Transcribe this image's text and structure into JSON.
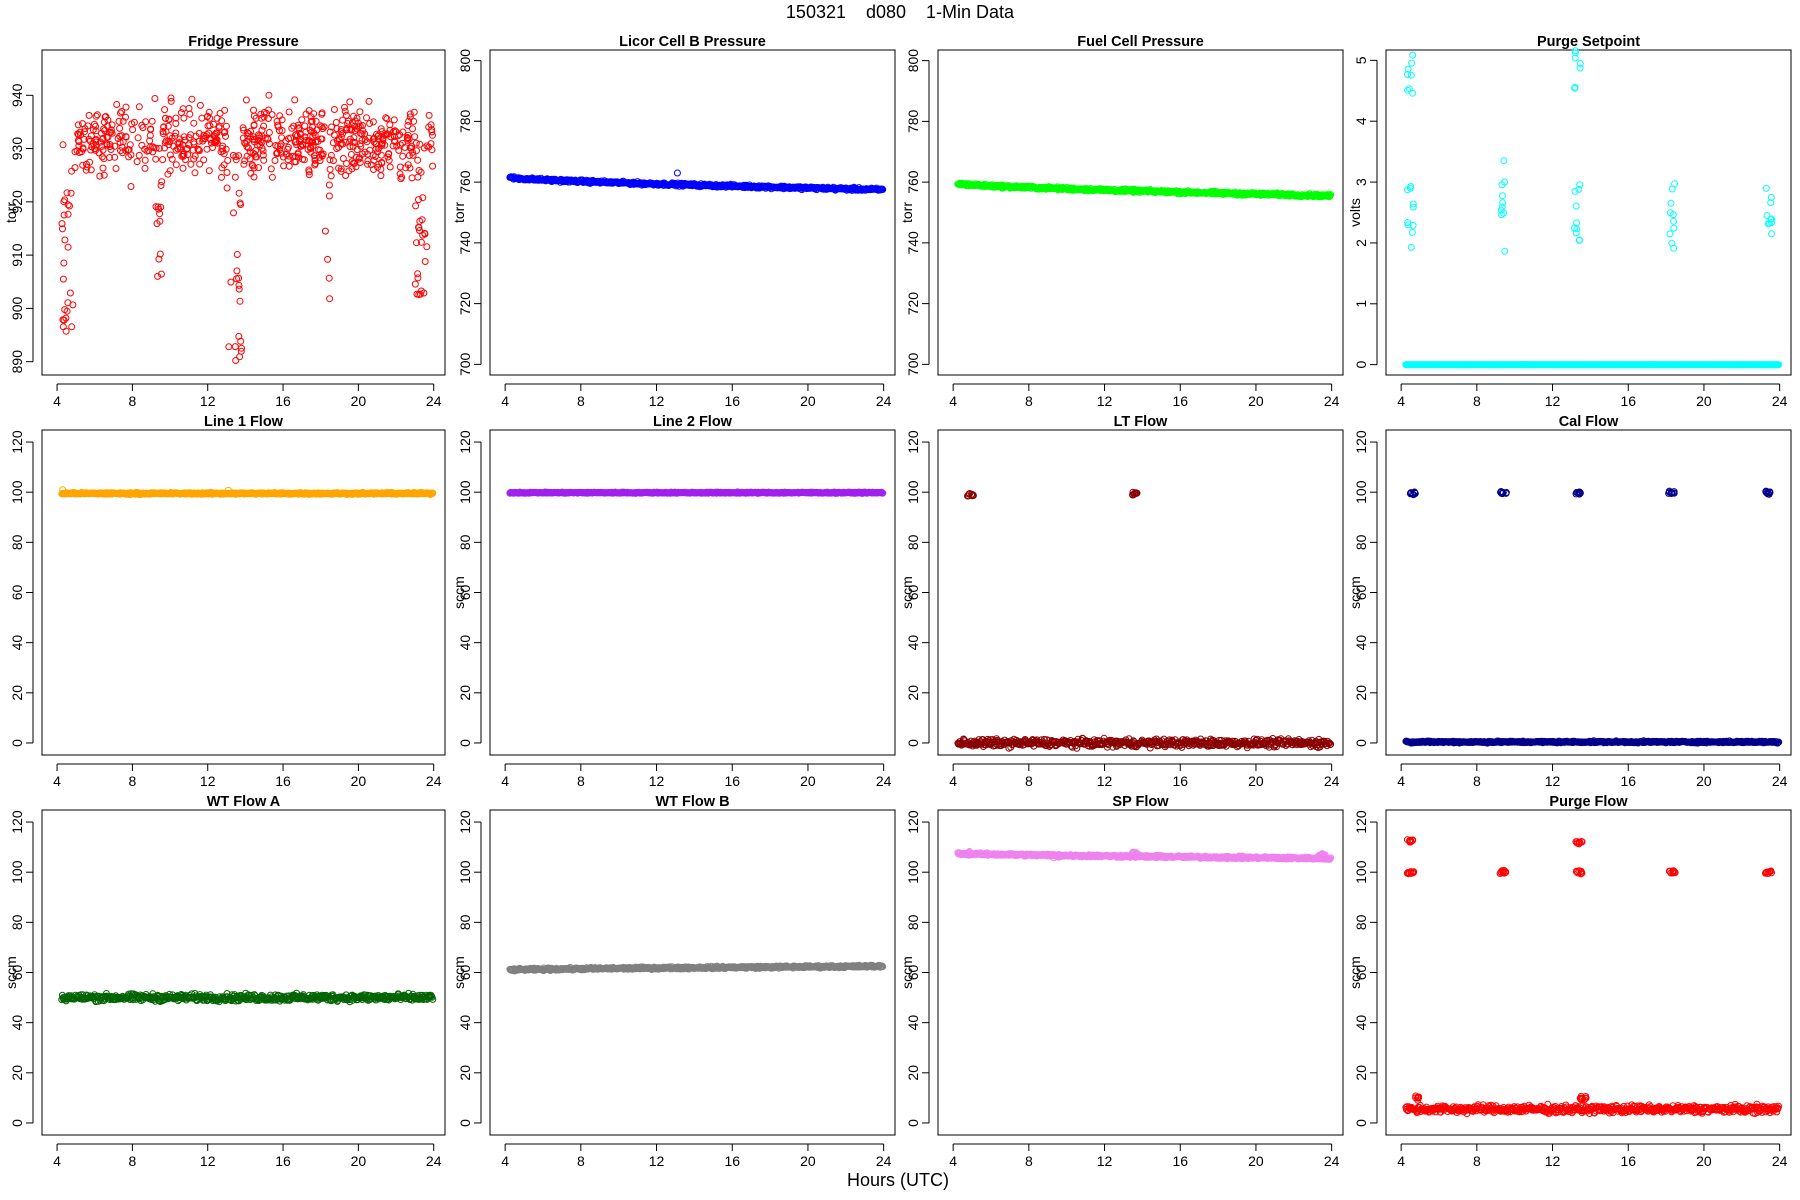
{
  "page": {
    "suptitle": "150321    d080    1-Min Data",
    "xlabel": "Hours (UTC)"
  },
  "chart_data": [
    {
      "type": "scatter",
      "title": "Fridge Pressure",
      "ylabel": "torr",
      "color": "#ff0000",
      "xlim": [
        3.2,
        24.6
      ],
      "ylim": [
        887.5,
        948.5
      ],
      "xticks": [
        4,
        8,
        12,
        16,
        20,
        24
      ],
      "yticks": [
        890,
        900,
        910,
        920,
        930,
        940
      ],
      "pattern": {
        "kind": "noisy",
        "base": 931.5,
        "noise": 5.5,
        "dips": [
          {
            "x_start": 4.2,
            "x_end": 4.9,
            "y_min": 895
          },
          {
            "x_start": 9.2,
            "x_end": 9.6,
            "y_min": 906
          },
          {
            "x_start": 13.0,
            "x_end": 13.8,
            "y_min": 890
          },
          {
            "x_start": 18.2,
            "x_end": 18.5,
            "y_min": 900
          },
          {
            "x_start": 23.0,
            "x_end": 23.7,
            "y_min": 900
          }
        ]
      }
    },
    {
      "type": "scatter",
      "title": "Licor Cell B Pressure",
      "ylabel": "torr",
      "color": "#0000ff",
      "xlim": [
        3.2,
        24.6
      ],
      "ylim": [
        696.5,
        803.5
      ],
      "xticks": [
        4,
        8,
        12,
        16,
        20,
        24
      ],
      "yticks": [
        700,
        720,
        740,
        760,
        780,
        800
      ],
      "pattern": {
        "kind": "trend",
        "y_start": 761.5,
        "y_end": 757.5,
        "noise": 0.4,
        "outliers": [
          [
            13.1,
            763
          ]
        ]
      }
    },
    {
      "type": "scatter",
      "title": "Fuel Cell Pressure",
      "ylabel": "torr",
      "color": "#00ff00",
      "xlim": [
        3.2,
        24.6
      ],
      "ylim": [
        696.5,
        803.5
      ],
      "xticks": [
        4,
        8,
        12,
        16,
        20,
        24
      ],
      "yticks": [
        700,
        720,
        740,
        760,
        780,
        800
      ],
      "pattern": {
        "kind": "trend",
        "y_start": 759.5,
        "y_end": 755.5,
        "noise": 0.4
      }
    },
    {
      "type": "scatter",
      "title": "Purge Setpoint",
      "ylabel": "volts",
      "color": "#00ffff",
      "xlim": [
        3.2,
        24.6
      ],
      "ylim": [
        -0.17,
        5.17
      ],
      "xticks": [
        4,
        8,
        12,
        16,
        20,
        24
      ],
      "yticks": [
        0,
        1,
        2,
        3,
        4,
        5
      ],
      "pattern": {
        "kind": "baseline",
        "y": 0,
        "noise": 0,
        "clusters": [
          {
            "x": 4.5,
            "y": 5.0
          },
          {
            "x": 4.5,
            "y": 2.5
          },
          {
            "x": 9.4,
            "y": 2.5
          },
          {
            "x": 13.3,
            "y": 5.0
          },
          {
            "x": 13.3,
            "y": 2.55
          },
          {
            "x": 18.3,
            "y": 2.5
          },
          {
            "x": 23.4,
            "y": 2.5
          }
        ]
      }
    },
    {
      "type": "scatter",
      "title": "Line 1 Flow",
      "ylabel": "",
      "color": "#ffa500",
      "xlim": [
        3.2,
        24.6
      ],
      "ylim": [
        -4.8,
        124.8
      ],
      "xticks": [
        4,
        8,
        12,
        16,
        20,
        24
      ],
      "yticks": [
        0,
        20,
        40,
        60,
        80,
        100,
        120
      ],
      "pattern": {
        "kind": "baseline",
        "y": 99.5,
        "noise": 0.3,
        "outliers": [
          [
            4.3,
            101
          ],
          [
            13.1,
            100.8
          ]
        ]
      }
    },
    {
      "type": "scatter",
      "title": "Line 2 Flow",
      "ylabel": "sccm",
      "color": "#a020f0",
      "xlim": [
        3.2,
        24.6
      ],
      "ylim": [
        -4.8,
        124.8
      ],
      "xticks": [
        4,
        8,
        12,
        16,
        20,
        24
      ],
      "yticks": [
        0,
        20,
        40,
        60,
        80,
        100,
        120
      ],
      "pattern": {
        "kind": "baseline",
        "y": 99.8,
        "noise": 0.2
      }
    },
    {
      "type": "scatter",
      "title": "LT Flow",
      "ylabel": "sccm",
      "color": "#8b0000",
      "xlim": [
        3.2,
        24.6
      ],
      "ylim": [
        -4.8,
        124.8
      ],
      "xticks": [
        4,
        8,
        12,
        16,
        20,
        24
      ],
      "yticks": [
        0,
        20,
        40,
        60,
        80,
        100,
        120
      ],
      "pattern": {
        "kind": "baseline",
        "y": 0,
        "noise": 1.3,
        "clusters": [
          {
            "x": 4.9,
            "y": 99
          },
          {
            "x": 13.6,
            "y": 99.5
          }
        ]
      }
    },
    {
      "type": "scatter",
      "title": "Cal Flow",
      "ylabel": "sccm",
      "color": "#00008b",
      "xlim": [
        3.2,
        24.6
      ],
      "ylim": [
        -4.8,
        124.8
      ],
      "xticks": [
        4,
        8,
        12,
        16,
        20,
        24
      ],
      "yticks": [
        0,
        20,
        40,
        60,
        80,
        100,
        120
      ],
      "pattern": {
        "kind": "baseline",
        "y": 0.4,
        "noise": 0.3,
        "clusters": [
          {
            "x": 4.6,
            "y": 99.8
          },
          {
            "x": 9.4,
            "y": 99.8
          },
          {
            "x": 13.3,
            "y": 99.8
          },
          {
            "x": 18.3,
            "y": 99.8
          },
          {
            "x": 23.4,
            "y": 99.8
          }
        ]
      }
    },
    {
      "type": "scatter",
      "title": "WT Flow A",
      "ylabel": "sccm",
      "color": "#006400",
      "xlim": [
        3.2,
        24.6
      ],
      "ylim": [
        -4.8,
        124.8
      ],
      "xticks": [
        4,
        8,
        12,
        16,
        20,
        24
      ],
      "yticks": [
        0,
        20,
        40,
        60,
        80,
        100,
        120
      ],
      "pattern": {
        "kind": "baseline",
        "y": 50,
        "noise": 1.2
      }
    },
    {
      "type": "scatter",
      "title": "WT Flow B",
      "ylabel": "sccm",
      "color": "#808080",
      "xlim": [
        3.2,
        24.6
      ],
      "ylim": [
        -4.8,
        124.8
      ],
      "xticks": [
        4,
        8,
        12,
        16,
        20,
        24
      ],
      "yticks": [
        0,
        20,
        40,
        60,
        80,
        100,
        120
      ],
      "pattern": {
        "kind": "trend",
        "y_start": 61,
        "y_end": 62.5,
        "noise": 0.4
      }
    },
    {
      "type": "scatter",
      "title": "SP Flow",
      "ylabel": "sccm",
      "color": "#ee82ee",
      "xlim": [
        3.2,
        24.6
      ],
      "ylim": [
        -4.8,
        124.8
      ],
      "xticks": [
        4,
        8,
        12,
        16,
        20,
        24
      ],
      "yticks": [
        0,
        20,
        40,
        60,
        80,
        100,
        120
      ],
      "pattern": {
        "kind": "trend",
        "y_start": 107.5,
        "y_end": 105.5,
        "noise": 0.4,
        "clusters": [
          {
            "x": 4.8,
            "y": 107.5
          },
          {
            "x": 9.5,
            "y": 106.5
          },
          {
            "x": 13.6,
            "y": 107.5
          },
          {
            "x": 18.4,
            "y": 106
          },
          {
            "x": 23.5,
            "y": 107
          }
        ]
      }
    },
    {
      "type": "scatter",
      "title": "Purge Flow",
      "ylabel": "sccm",
      "color": "#ff0000",
      "xlim": [
        3.2,
        24.6
      ],
      "ylim": [
        -4.8,
        124.8
      ],
      "xticks": [
        4,
        8,
        12,
        16,
        20,
        24
      ],
      "yticks": [
        0,
        20,
        40,
        60,
        80,
        100,
        120
      ],
      "pattern": {
        "kind": "baseline",
        "y": 5.5,
        "noise": 1.3,
        "clusters": [
          {
            "x": 4.5,
            "y": 112.5
          },
          {
            "x": 4.5,
            "y": 100
          },
          {
            "x": 4.9,
            "y": 10
          },
          {
            "x": 9.4,
            "y": 100
          },
          {
            "x": 13.4,
            "y": 112
          },
          {
            "x": 13.4,
            "y": 100
          },
          {
            "x": 13.6,
            "y": 10
          },
          {
            "x": 18.3,
            "y": 100
          },
          {
            "x": 23.4,
            "y": 100
          }
        ]
      }
    }
  ]
}
